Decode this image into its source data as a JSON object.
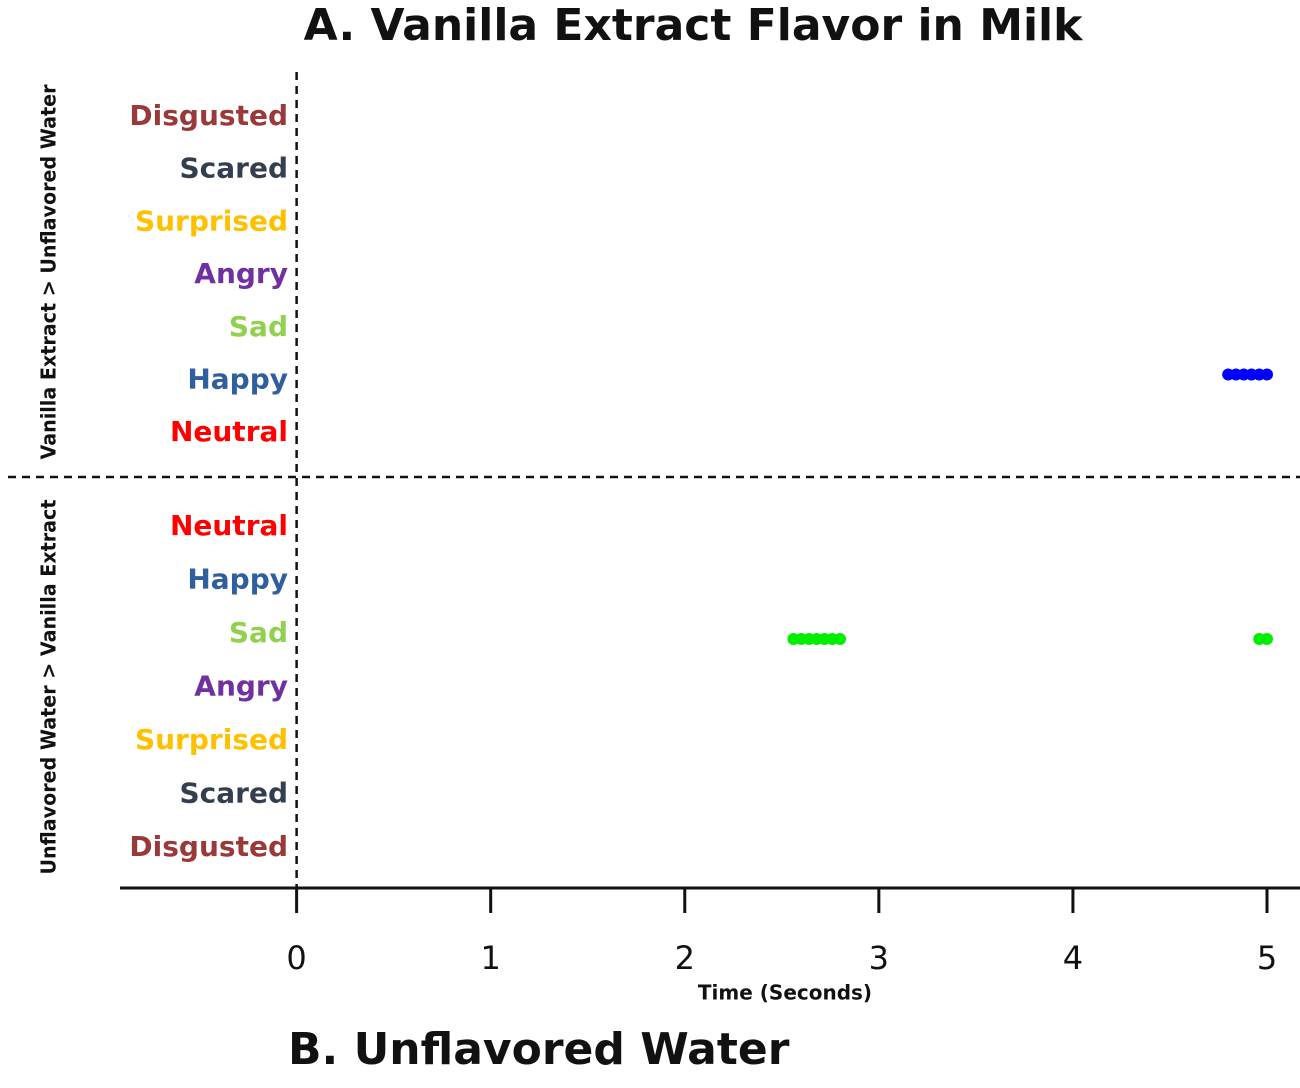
{
  "chart_data": {
    "type": "timeline",
    "title": "A. Vanilla Extract Flavor in Milk",
    "footer": "B. Unflavored Water",
    "x_label": "Time (Seconds)",
    "xlim": [
      -0.91,
      5.17
    ],
    "xticks": [
      0,
      1,
      2,
      3,
      4,
      5
    ],
    "panels": [
      {
        "label": "Vanilla Extract > Unflavored Water",
        "rows": [
          {
            "name": "Disgusted",
            "color": "#993a3a",
            "times": []
          },
          {
            "name": "Scared",
            "color": "#333f4f",
            "times": []
          },
          {
            "name": "Surprised",
            "color": "#ffc000",
            "times": []
          },
          {
            "name": "Angry",
            "color": "#7030a0",
            "times": []
          },
          {
            "name": "Sad",
            "color": "#92d050",
            "times": []
          },
          {
            "name": "Happy",
            "color": "#2f5f9e",
            "dot_color": "#0000ff",
            "times": [
              4.8,
              4.84,
              4.88,
              4.92,
              4.96,
              5.0
            ]
          },
          {
            "name": "Neutral",
            "color": "#ff0000",
            "times": []
          }
        ]
      },
      {
        "label": "Unflavored Water > Vanilla Extract",
        "rows": [
          {
            "name": "Neutral",
            "color": "#ff0000",
            "times": []
          },
          {
            "name": "Happy",
            "color": "#2f5f9e",
            "times": []
          },
          {
            "name": "Sad",
            "color": "#92d050",
            "dot_color": "#00ee00",
            "times": [
              2.56,
              2.6,
              2.64,
              2.68,
              2.72,
              2.76,
              2.8,
              4.96,
              5.0
            ]
          },
          {
            "name": "Angry",
            "color": "#7030a0",
            "times": []
          },
          {
            "name": "Surprised",
            "color": "#ffc000",
            "times": []
          },
          {
            "name": "Scared",
            "color": "#333f4f",
            "times": []
          },
          {
            "name": "Disgusted",
            "color": "#993a3a",
            "times": []
          }
        ]
      }
    ]
  }
}
